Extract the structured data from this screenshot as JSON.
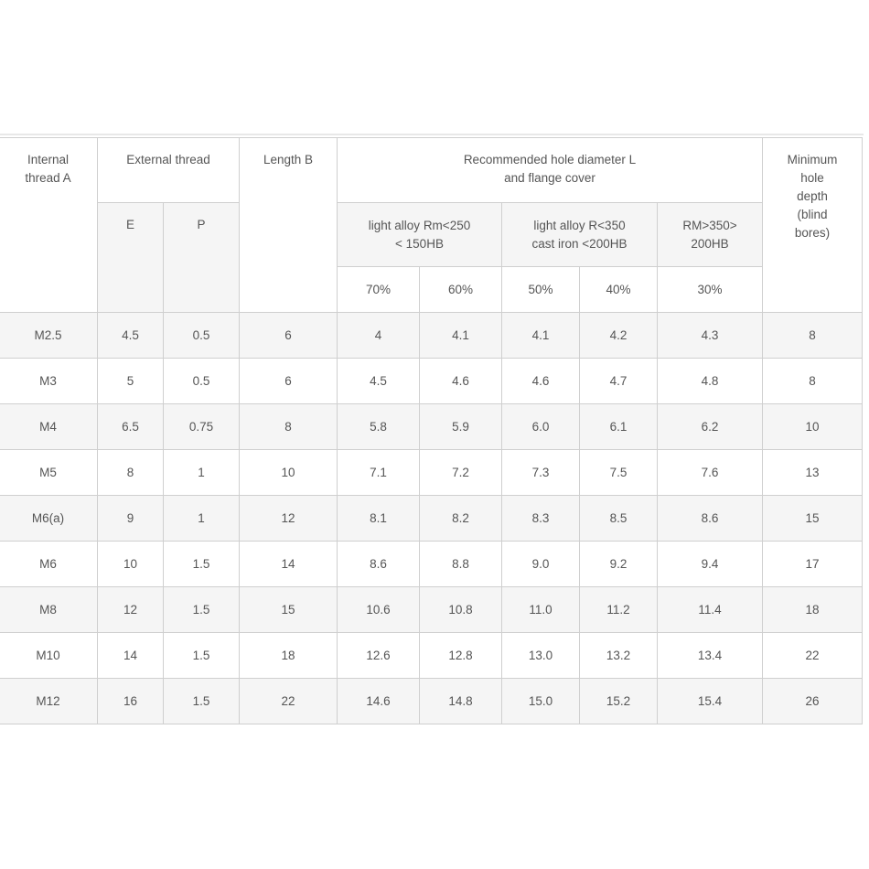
{
  "table": {
    "headers": {
      "internal_thread": "Internal\nthread A",
      "external_thread": "External thread",
      "e": "E",
      "p": "P",
      "length": "Length B",
      "recommended": "Recommended hole diameter L\nand flange cover",
      "light_alloy_250": "light alloy Rm<250\n< 150HB",
      "light_alloy_350": "light alloy R<350\ncast iron <200HB",
      "rm350": "RM>350>\n200HB",
      "p70": "70%",
      "p60": "60%",
      "p50": "50%",
      "p40": "40%",
      "p30": "30%",
      "min_depth": "Minimum\nhole\ndepth\n(blind\nbores)"
    },
    "rows": [
      [
        "M2.5",
        "4.5",
        "0.5",
        "6",
        "4",
        "4.1",
        "4.1",
        "4.2",
        "4.3",
        "8"
      ],
      [
        "M3",
        "5",
        "0.5",
        "6",
        "4.5",
        "4.6",
        "4.6",
        "4.7",
        "4.8",
        "8"
      ],
      [
        "M4",
        "6.5",
        "0.75",
        "8",
        "5.8",
        "5.9",
        "6.0",
        "6.1",
        "6.2",
        "10"
      ],
      [
        "M5",
        "8",
        "1",
        "10",
        "7.1",
        "7.2",
        "7.3",
        "7.5",
        "7.6",
        "13"
      ],
      [
        "M6(a)",
        "9",
        "1",
        "12",
        "8.1",
        "8.2",
        "8.3",
        "8.5",
        "8.6",
        "15"
      ],
      [
        "M6",
        "10",
        "1.5",
        "14",
        "8.6",
        "8.8",
        "9.0",
        "9.2",
        "9.4",
        "17"
      ],
      [
        "M8",
        "12",
        "1.5",
        "15",
        "10.6",
        "10.8",
        "11.0",
        "11.2",
        "11.4",
        "18"
      ],
      [
        "M10",
        "14",
        "1.5",
        "18",
        "12.6",
        "12.8",
        "13.0",
        "13.2",
        "13.4",
        "22"
      ],
      [
        "M12",
        "16",
        "1.5",
        "22",
        "14.6",
        "14.8",
        "15.0",
        "15.2",
        "15.4",
        "26"
      ]
    ]
  }
}
